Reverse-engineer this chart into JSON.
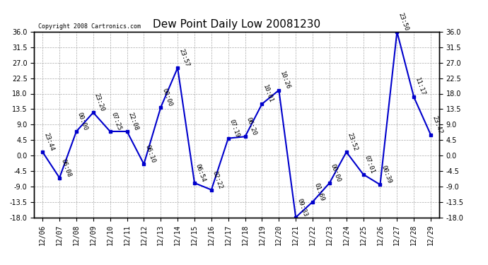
{
  "title": "Dew Point Daily Low 20081230",
  "copyright": "Copyright 2008 Cartronics.com",
  "x_labels": [
    "12/06",
    "12/07",
    "12/08",
    "12/09",
    "12/10",
    "12/11",
    "12/12",
    "12/13",
    "12/14",
    "12/15",
    "12/16",
    "12/17",
    "12/18",
    "12/19",
    "12/20",
    "12/21",
    "12/22",
    "12/23",
    "12/24",
    "12/25",
    "12/26",
    "12/27",
    "12/28",
    "12/29"
  ],
  "y_values": [
    1.0,
    -6.5,
    7.0,
    12.5,
    7.0,
    7.0,
    -2.5,
    14.0,
    25.5,
    -8.0,
    -10.0,
    5.0,
    5.5,
    15.0,
    19.0,
    -18.0,
    -13.5,
    -8.0,
    1.0,
    -5.5,
    -8.5,
    36.0,
    17.0,
    6.0
  ],
  "time_labels": [
    "23:44",
    "06:08",
    "00:00",
    "23:20",
    "07:25",
    "22:08",
    "06:10",
    "00:00",
    "23:57",
    "06:54",
    "02:22",
    "07:19",
    "06:20",
    "10:01",
    "10:26",
    "09:33",
    "01:69",
    "00:00",
    "23:52",
    "07:01",
    "00:39",
    "23:50",
    "11:17",
    "23:42"
  ],
  "line_color": "#0000cc",
  "marker_color": "#0000cc",
  "bg_color": "#ffffff",
  "grid_color": "#aaaaaa",
  "title_fontsize": 11,
  "tick_fontsize": 7,
  "label_fontsize": 6.5,
  "ylim": [
    -18.0,
    36.0
  ],
  "yticks": [
    -18.0,
    -13.5,
    -9.0,
    -4.5,
    0.0,
    4.5,
    9.0,
    13.5,
    18.0,
    22.5,
    27.0,
    31.5,
    36.0
  ]
}
